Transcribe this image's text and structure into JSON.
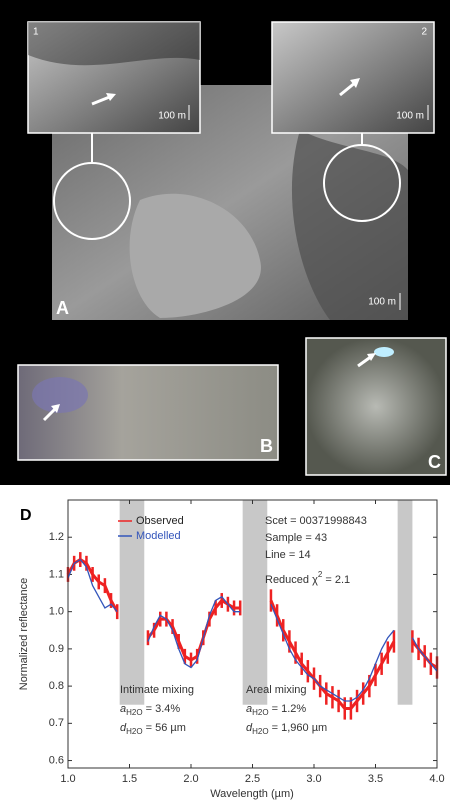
{
  "figure": {
    "panel_a": {
      "label": "A",
      "scale": "100 m",
      "inset_1": {
        "label": "1",
        "scale": "100 m"
      },
      "inset_2": {
        "label": "2",
        "scale": "100 m"
      }
    },
    "panel_b": {
      "label": "B"
    },
    "panel_c": {
      "label": "C"
    }
  },
  "chart_data": {
    "type": "line",
    "panel_label": "D",
    "xlabel": "Wavelength (µm)",
    "ylabel": "Normalized reflectance",
    "xlim": [
      1.0,
      4.0
    ],
    "ylim": [
      0.58,
      1.3
    ],
    "xticks": [
      {
        "value": 1,
        "label": "1.0"
      },
      1.5,
      {
        "value": 2,
        "label": "2.0"
      },
      2.5,
      {
        "value": 3,
        "label": "3.0"
      },
      3.5,
      {
        "value": 4,
        "label": "4.0"
      }
    ],
    "yticks": [
      0.6,
      0.7,
      0.8,
      0.9,
      {
        "value": 1,
        "label": "1.0"
      },
      1.1,
      1.2
    ],
    "bands": [
      {
        "x": [
          1.42,
          1.62
        ],
        "y": [
          0.75,
          1.3
        ]
      },
      {
        "x": [
          2.42,
          2.62
        ],
        "y": [
          0.75,
          1.3
        ]
      },
      {
        "x": [
          3.68,
          3.8
        ],
        "y": [
          0.75,
          1.3
        ]
      }
    ],
    "x": [
      1.0,
      1.05,
      1.1,
      1.15,
      1.2,
      1.25,
      1.3,
      1.35,
      1.4,
      1.45,
      1.5,
      1.55,
      1.6,
      1.65,
      1.7,
      1.75,
      1.8,
      1.85,
      1.9,
      1.95,
      2.0,
      2.05,
      2.1,
      2.15,
      2.2,
      2.25,
      2.3,
      2.35,
      2.4,
      2.45,
      2.5,
      2.55,
      2.6,
      2.65,
      2.7,
      2.75,
      2.8,
      2.85,
      2.9,
      2.95,
      3.0,
      3.05,
      3.1,
      3.15,
      3.2,
      3.25,
      3.3,
      3.35,
      3.4,
      3.45,
      3.5,
      3.55,
      3.6,
      3.65,
      3.7,
      3.75,
      3.8,
      3.85,
      3.9,
      3.95,
      4.0
    ],
    "series": [
      {
        "name": "Observed",
        "color": "#ee2222",
        "values": [
          1.1,
          1.13,
          1.14,
          1.13,
          1.1,
          1.08,
          1.07,
          1.03,
          1.0,
          null,
          null,
          null,
          null,
          0.93,
          0.95,
          0.98,
          0.98,
          0.96,
          0.92,
          0.88,
          0.87,
          0.88,
          0.93,
          0.98,
          1.01,
          1.03,
          1.02,
          1.01,
          1.01,
          null,
          null,
          null,
          null,
          1.03,
          0.99,
          0.95,
          0.92,
          0.89,
          0.86,
          0.84,
          0.82,
          0.8,
          0.78,
          0.77,
          0.76,
          0.74,
          0.74,
          0.76,
          0.78,
          0.8,
          0.83,
          0.86,
          0.89,
          0.92,
          null,
          null,
          0.92,
          0.9,
          0.88,
          0.86,
          0.85
        ],
        "errors": [
          0.02,
          0.02,
          0.02,
          0.02,
          0.02,
          0.02,
          0.02,
          0.02,
          0.02,
          null,
          null,
          null,
          null,
          0.02,
          0.02,
          0.02,
          0.02,
          0.02,
          0.02,
          0.02,
          0.02,
          0.02,
          0.02,
          0.02,
          0.02,
          0.02,
          0.02,
          0.02,
          0.02,
          null,
          null,
          null,
          null,
          0.03,
          0.03,
          0.03,
          0.03,
          0.03,
          0.03,
          0.03,
          0.03,
          0.03,
          0.03,
          0.03,
          0.03,
          0.03,
          0.03,
          0.03,
          0.03,
          0.03,
          0.03,
          0.03,
          0.03,
          0.03,
          null,
          null,
          0.03,
          0.03,
          0.03,
          0.03,
          0.03
        ]
      },
      {
        "name": "Modelled",
        "color": "#3355bb",
        "values": [
          1.09,
          1.13,
          1.14,
          1.12,
          1.07,
          1.04,
          1.01,
          1.02,
          1.0,
          null,
          null,
          null,
          null,
          0.92,
          0.96,
          0.99,
          0.98,
          0.95,
          0.9,
          0.86,
          0.85,
          0.87,
          0.93,
          0.99,
          1.03,
          1.04,
          1.02,
          1.0,
          1.0,
          null,
          null,
          null,
          null,
          1.02,
          0.98,
          0.94,
          0.9,
          0.87,
          0.85,
          0.83,
          0.82,
          0.8,
          0.79,
          0.78,
          0.77,
          0.76,
          0.76,
          0.77,
          0.79,
          0.82,
          0.86,
          0.9,
          0.93,
          0.95,
          null,
          null,
          0.93,
          0.9,
          0.88,
          0.86,
          0.84
        ]
      }
    ],
    "info": [
      "Scet = 00371998843",
      "Sample = 43",
      "Line = 14"
    ],
    "chi": {
      "text": "Reduced χ",
      "sup": "2",
      "rest": " = 2.1"
    },
    "mixing": [
      {
        "title": "Intimate mixing",
        "lines": [
          {
            "symbol": "a",
            "sub": "H2O",
            "text": " = 3.4%"
          },
          {
            "symbol": "d",
            "sub": "H2O",
            "text": " = 56 µm"
          }
        ]
      },
      {
        "title": "Areal mixing",
        "lines": [
          {
            "symbol": "a",
            "sub": "H2O",
            "text": " = 1.2%"
          },
          {
            "symbol": "d",
            "sub": "H2O",
            "text": " = 1,960 µm"
          }
        ]
      }
    ]
  }
}
